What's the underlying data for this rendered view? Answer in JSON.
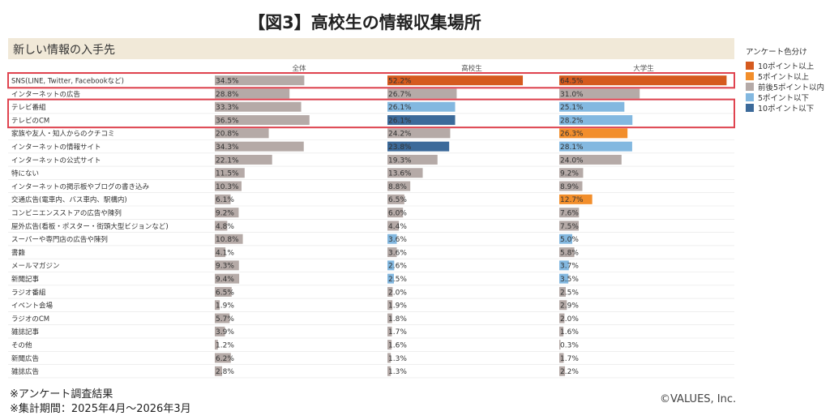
{
  "title": "【図3】高校生の情報収集場所",
  "subtitle": "新しい情報の入手先",
  "legend": {
    "title": "アンケート色分け",
    "items": [
      {
        "label": "10ポイント以上",
        "color": "#d55a1e"
      },
      {
        "label": "5ポイント以上",
        "color": "#f28e2b"
      },
      {
        "label": "前後5ポイント以内",
        "color": "#b5aaa7"
      },
      {
        "label": "5ポイント以下",
        "color": "#83b8e0"
      },
      {
        "label": "10ポイント以下",
        "color": "#3c6a9a"
      }
    ]
  },
  "notes": [
    "※アンケート調査結果",
    "※集計期間：2025年4月〜2026年3月"
  ],
  "copyright": "©VALUES, Inc.",
  "chart_data": {
    "type": "bar",
    "orientation": "horizontal",
    "columns": [
      "全体",
      "高校生",
      "大学生"
    ],
    "categories": [
      "SNS(LINE, Twitter, Facebookなど)",
      "インターネットの広告",
      "テレビ番組",
      "テレビのCM",
      "家族や友人・知人からのクチコミ",
      "インターネットの情報サイト",
      "インターネットの公式サイト",
      "特にない",
      "インターネットの掲示板やブログの書き込み",
      "交通広告(電車内、バス車内、駅構内)",
      "コンビニエンスストアの広告や陳列",
      "屋外広告(看板・ポスター・街頭大型ビジョンなど)",
      "スーパーや専門店の広告や陳列",
      "書籍",
      "メールマガジン",
      "新聞記事",
      "ラジオ番組",
      "イベント会場",
      "ラジオのCM",
      "雑誌記事",
      "その他",
      "新聞広告",
      "雑誌広告"
    ],
    "series": [
      {
        "name": "全体",
        "values": [
          34.5,
          28.8,
          33.3,
          36.5,
          20.8,
          34.3,
          22.1,
          11.5,
          10.3,
          6.1,
          9.2,
          4.8,
          10.8,
          4.1,
          9.3,
          9.4,
          6.5,
          1.9,
          5.7,
          3.9,
          1.2,
          6.2,
          2.8
        ]
      },
      {
        "name": "高校生",
        "values": [
          52.2,
          26.7,
          26.1,
          26.1,
          24.2,
          23.8,
          19.3,
          13.6,
          8.8,
          6.5,
          6.0,
          4.4,
          3.6,
          3.6,
          2.6,
          2.5,
          2.0,
          1.9,
          1.8,
          1.7,
          1.6,
          1.3,
          1.3
        ]
      },
      {
        "name": "大学生",
        "values": [
          64.5,
          31.0,
          25.1,
          28.2,
          26.3,
          28.1,
          24.0,
          9.2,
          8.9,
          12.7,
          7.6,
          7.5,
          5.0,
          5.8,
          3.7,
          3.5,
          2.5,
          2.9,
          2.0,
          1.6,
          0.3,
          1.7,
          2.2
        ]
      }
    ],
    "value_labels": {
      "全体": [
        "34.5%",
        "28.8%",
        "33.3%",
        "36.5%",
        "20.8%",
        "34.3%",
        "22.1%",
        "11.5%",
        "10.3%",
        "6.1%",
        "9.2%",
        "4.8%",
        "10.8%",
        "4.1%",
        "9.3%",
        "9.4%",
        "6.5%",
        "1.9%",
        "5.7%",
        "3.9%",
        "1.2%",
        "6.2%",
        "2.8%"
      ],
      "高校生": [
        "52.2%",
        "26.7%",
        "26.1%",
        "26.1%",
        "24.2%",
        "23.8%",
        "19.3%",
        "13.6%",
        "8.8%",
        "6.5%",
        "6.0%",
        "4.4%",
        "3.6%",
        "3.6%",
        "2.6%",
        "2.5%",
        "2.0%",
        "1.9%",
        "1.8%",
        "1.7%",
        "1.6%",
        "1.3%",
        "1.3%"
      ],
      "大学生": [
        "64.5%",
        "31.0%",
        "25.1%",
        "28.2%",
        "26.3%",
        "28.1%",
        "24.0%",
        "9.2%",
        "8.9%",
        "12.7%",
        "7.6%",
        "7.5%",
        "5.0%",
        "5.8%",
        "3.7%",
        "3.5%",
        "2.5%",
        "2.9%",
        "2.0%",
        "1.6%",
        "0.3%",
        "1.7%",
        "2.2%"
      ]
    },
    "color_categories": {
      "全体": [
        "n",
        "n",
        "n",
        "n",
        "n",
        "n",
        "n",
        "n",
        "n",
        "n",
        "n",
        "n",
        "n",
        "n",
        "n",
        "n",
        "n",
        "n",
        "n",
        "n",
        "n",
        "n",
        "n"
      ],
      "高校生": [
        "up10",
        "n",
        "lo5",
        "lo10",
        "n",
        "lo10",
        "n",
        "n",
        "n",
        "n",
        "n",
        "n",
        "lo5",
        "n",
        "lo5",
        "lo5",
        "n",
        "n",
        "n",
        "n",
        "n",
        "n",
        "n"
      ],
      "大学生": [
        "up10",
        "n",
        "lo5",
        "lo5",
        "up5",
        "lo5",
        "n",
        "n",
        "n",
        "up5",
        "n",
        "n",
        "lo5",
        "n",
        "lo5",
        "lo5",
        "n",
        "n",
        "n",
        "n",
        "n",
        "n",
        "n"
      ]
    },
    "colors": {
      "up10": "#d55a1e",
      "up5": "#f28e2b",
      "n": "#b5aaa7",
      "lo5": "#83b8e0",
      "lo10": "#3c6a9a"
    },
    "highlight_groups": [
      [
        0,
        0
      ],
      [
        2,
        3
      ]
    ],
    "highlight_color": "#e0434f",
    "xlim": [
      0,
      65
    ]
  }
}
